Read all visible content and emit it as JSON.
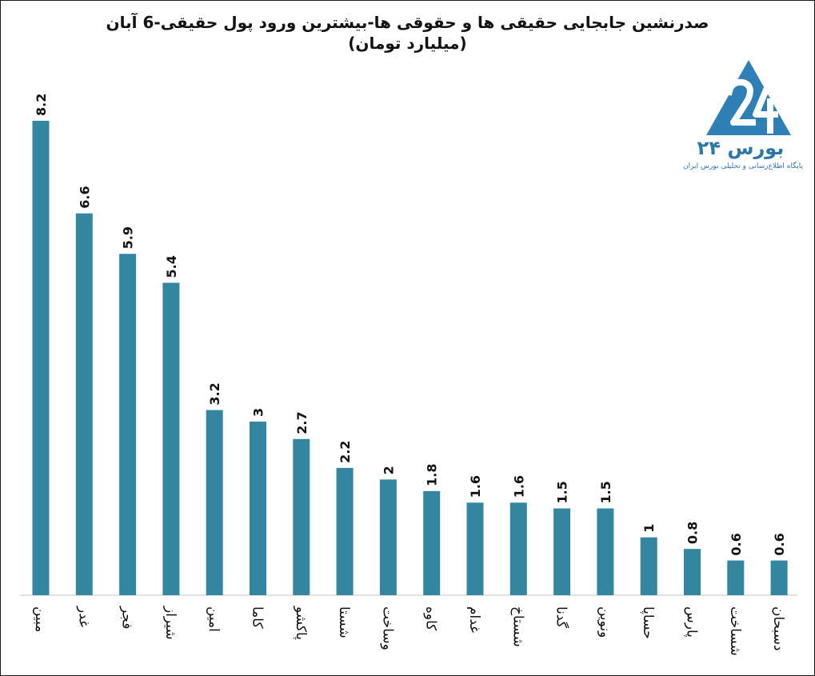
{
  "chart_data": {
    "type": "bar",
    "title": "صدرنشین جابجایی حقیقی ها و حقوقی ها-بیشترین ورود پول حقیقی-6 آبان",
    "subtitle": "(میلیارد تومان)",
    "categories": [
      "مبین",
      "غدر",
      "فجر",
      "شیراز",
      "امین",
      "کاما",
      "پاکشو",
      "شستا",
      "وساخت",
      "کاوه",
      "غدام",
      "شستاخ",
      "گدنا",
      "ونوین",
      "حساپا",
      "پارس",
      "شساخت",
      "دسبحان"
    ],
    "values": [
      8.2,
      6.6,
      5.9,
      5.4,
      3.2,
      3,
      2.7,
      2.2,
      2,
      1.8,
      1.6,
      1.6,
      1.5,
      1.5,
      1,
      0.8,
      0.6,
      0.6
    ],
    "value_labels": [
      "8.2",
      "6.6",
      "5.9",
      "5.4",
      "3.2",
      "3",
      "2.7",
      "2.2",
      "2",
      "1.8",
      "1.6",
      "1.6",
      "1.5",
      "1.5",
      "1",
      "0.8",
      "0.6",
      "0.6"
    ],
    "ylim": [
      0,
      8.2
    ],
    "grid": false,
    "bar_color": "#33869f",
    "label_orientation": "vertical"
  },
  "logo": {
    "name": "بورس ۲۴",
    "tagline": "پایگاه اطلاع‌رسانی و تحلیلی بورس ایران",
    "icon": "bourse24-triangle-logo",
    "color": "#2d76a8"
  }
}
